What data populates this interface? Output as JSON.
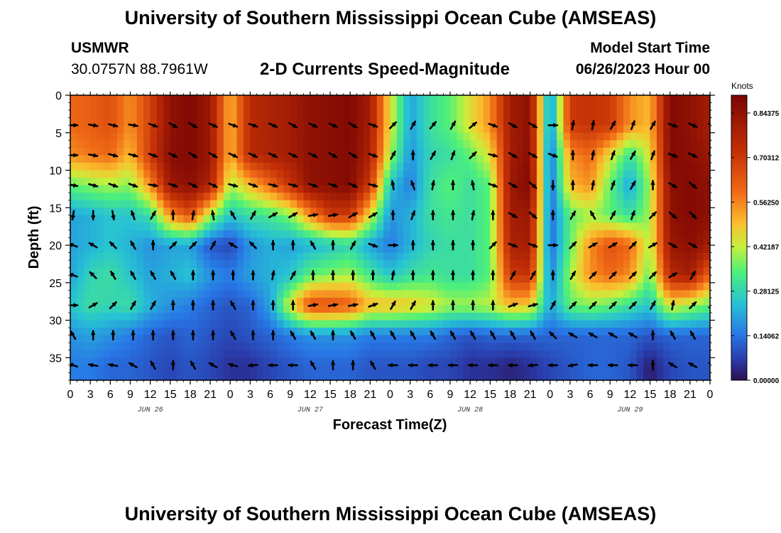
{
  "header": {
    "title": "University of Southern Mississippi Ocean Cube (AMSEAS)",
    "station_id": "USMWR",
    "station_coords": "30.0757N  88.7961W",
    "plot_title": "2-D Currents Speed-Magnitude",
    "model_start_label": "Model Start Time",
    "model_start_value": "06/26/2023 Hour 00"
  },
  "footer": {
    "title": "University of Southern Mississippi Ocean Cube (AMSEAS)"
  },
  "colors": {
    "arrow": "#000000",
    "frame": "#000000"
  },
  "chart_data": {
    "type": "heatmap",
    "title": "2-D Currents Speed-Magnitude",
    "xlabel": "Forecast Time(Z)",
    "ylabel": "Depth (ft)",
    "x_range_hours": [
      0,
      96
    ],
    "y_range_ft": [
      0,
      38
    ],
    "y_ticks": [
      0,
      5,
      10,
      15,
      20,
      25,
      30,
      35
    ],
    "x_tick_labels": [
      "0",
      "3",
      "6",
      "9",
      "12",
      "15",
      "18",
      "21",
      "0",
      "3",
      "6",
      "9",
      "12",
      "15",
      "18",
      "21",
      "0",
      "3",
      "6",
      "9",
      "12",
      "15",
      "18",
      "21",
      "0",
      "3",
      "6",
      "9",
      "12",
      "15",
      "18",
      "21",
      "0"
    ],
    "date_labels": [
      {
        "label": "JUN 26",
        "hour": 12
      },
      {
        "label": "JUN 27",
        "hour": 36
      },
      {
        "label": "JUN 28",
        "hour": 60
      },
      {
        "label": "JUN 29",
        "hour": 84
      }
    ],
    "colorbar": {
      "title": "Knots",
      "min": 0.0,
      "max": 0.9,
      "ticks": [
        0.84375,
        0.703125,
        0.5625,
        0.421875,
        0.28125,
        0.140625,
        0.0
      ],
      "tick_labels": [
        "0.84375",
        "0.70312",
        "0.56250",
        "0.42187",
        "0.28125",
        "0.14062",
        "0.00000"
      ]
    },
    "arrow_hours": [
      0,
      3,
      6,
      9,
      12,
      15,
      18,
      21,
      24,
      27,
      30,
      33,
      36,
      39,
      42,
      45,
      48,
      51,
      54,
      57,
      60,
      63,
      66,
      69,
      72,
      75,
      78,
      81,
      84,
      87,
      90,
      93,
      96
    ],
    "depths_ft": [
      4,
      8,
      12,
      16,
      20,
      24,
      28,
      32,
      36
    ],
    "speed_knots": [
      [
        0.6,
        0.62,
        0.65,
        0.55,
        0.68,
        0.85,
        0.88,
        0.82,
        0.5,
        0.75,
        0.78,
        0.8,
        0.85,
        0.86,
        0.88,
        0.8,
        0.45,
        0.2,
        0.3,
        0.35,
        0.45,
        0.55,
        0.8,
        0.85,
        0.15,
        0.7,
        0.72,
        0.7,
        0.55,
        0.5,
        0.88,
        0.85,
        0.8
      ],
      [
        0.55,
        0.58,
        0.6,
        0.5,
        0.7,
        0.86,
        0.88,
        0.82,
        0.5,
        0.75,
        0.78,
        0.8,
        0.85,
        0.86,
        0.88,
        0.78,
        0.4,
        0.18,
        0.28,
        0.3,
        0.35,
        0.45,
        0.8,
        0.86,
        0.12,
        0.55,
        0.6,
        0.45,
        0.3,
        0.45,
        0.88,
        0.86,
        0.82
      ],
      [
        0.35,
        0.38,
        0.4,
        0.38,
        0.55,
        0.82,
        0.86,
        0.78,
        0.4,
        0.5,
        0.6,
        0.72,
        0.85,
        0.86,
        0.88,
        0.7,
        0.25,
        0.15,
        0.3,
        0.35,
        0.3,
        0.35,
        0.82,
        0.88,
        0.12,
        0.5,
        0.55,
        0.35,
        0.2,
        0.4,
        0.85,
        0.88,
        0.85
      ],
      [
        0.2,
        0.22,
        0.25,
        0.25,
        0.3,
        0.55,
        0.65,
        0.4,
        0.25,
        0.3,
        0.32,
        0.38,
        0.55,
        0.7,
        0.7,
        0.45,
        0.18,
        0.22,
        0.3,
        0.32,
        0.3,
        0.35,
        0.8,
        0.82,
        0.12,
        0.35,
        0.4,
        0.35,
        0.3,
        0.4,
        0.85,
        0.88,
        0.85
      ],
      [
        0.2,
        0.22,
        0.25,
        0.22,
        0.18,
        0.2,
        0.2,
        0.1,
        0.08,
        0.18,
        0.22,
        0.2,
        0.22,
        0.25,
        0.28,
        0.2,
        0.15,
        0.22,
        0.28,
        0.3,
        0.3,
        0.35,
        0.78,
        0.8,
        0.12,
        0.35,
        0.55,
        0.65,
        0.6,
        0.4,
        0.82,
        0.86,
        0.8
      ],
      [
        0.2,
        0.28,
        0.3,
        0.25,
        0.2,
        0.22,
        0.25,
        0.18,
        0.15,
        0.2,
        0.22,
        0.25,
        0.35,
        0.38,
        0.4,
        0.32,
        0.25,
        0.3,
        0.32,
        0.3,
        0.3,
        0.35,
        0.7,
        0.72,
        0.15,
        0.4,
        0.55,
        0.6,
        0.55,
        0.35,
        0.75,
        0.8,
        0.6
      ],
      [
        0.25,
        0.3,
        0.28,
        0.3,
        0.22,
        0.18,
        0.15,
        0.12,
        0.1,
        0.12,
        0.2,
        0.45,
        0.65,
        0.65,
        0.62,
        0.5,
        0.5,
        0.48,
        0.45,
        0.4,
        0.4,
        0.42,
        0.5,
        0.48,
        0.2,
        0.35,
        0.38,
        0.35,
        0.3,
        0.25,
        0.45,
        0.4,
        0.35
      ],
      [
        0.18,
        0.2,
        0.18,
        0.15,
        0.12,
        0.1,
        0.12,
        0.1,
        0.08,
        0.1,
        0.12,
        0.15,
        0.18,
        0.18,
        0.18,
        0.15,
        0.15,
        0.15,
        0.15,
        0.12,
        0.1,
        0.12,
        0.12,
        0.12,
        0.12,
        0.12,
        0.12,
        0.12,
        0.12,
        0.1,
        0.12,
        0.12,
        0.12
      ],
      [
        0.15,
        0.15,
        0.12,
        0.12,
        0.1,
        0.08,
        0.1,
        0.08,
        0.05,
        0.05,
        0.08,
        0.1,
        0.12,
        0.12,
        0.12,
        0.1,
        0.1,
        0.1,
        0.08,
        0.08,
        0.05,
        0.05,
        0.03,
        0.05,
        0.08,
        0.1,
        0.12,
        0.12,
        0.1,
        0.02,
        0.08,
        0.1,
        0.1
      ]
    ],
    "direction_deg_cw_from_east": [
      [
        0,
        10,
        15,
        10,
        20,
        30,
        30,
        25,
        20,
        20,
        25,
        30,
        25,
        25,
        30,
        20,
        -45,
        -60,
        -50,
        -60,
        -40,
        20,
        30,
        30,
        0,
        -80,
        -80,
        -60,
        -70,
        -60,
        20,
        25,
        20
      ],
      [
        0,
        10,
        15,
        15,
        20,
        25,
        30,
        30,
        25,
        25,
        25,
        25,
        25,
        30,
        30,
        20,
        -60,
        -90,
        -60,
        -70,
        -45,
        15,
        30,
        30,
        20,
        -90,
        -80,
        -70,
        -60,
        -70,
        20,
        25,
        25
      ],
      [
        10,
        15,
        20,
        20,
        10,
        20,
        25,
        25,
        15,
        20,
        15,
        15,
        20,
        20,
        25,
        15,
        -100,
        -110,
        -80,
        -90,
        -100,
        20,
        30,
        40,
        90,
        -90,
        -80,
        -70,
        -60,
        -90,
        30,
        40,
        40
      ],
      [
        100,
        90,
        80,
        -110,
        -60,
        -90,
        -80,
        -100,
        -120,
        -60,
        -30,
        -30,
        -10,
        -10,
        -30,
        -30,
        -90,
        -70,
        -90,
        -90,
        -80,
        -90,
        30,
        40,
        -90,
        -60,
        -120,
        -60,
        -70,
        -45,
        40,
        45,
        45
      ],
      [
        -160,
        -150,
        -135,
        -120,
        -90,
        -45,
        -45,
        -60,
        -150,
        -135,
        -90,
        -90,
        -120,
        -90,
        -60,
        20,
        0,
        -90,
        -90,
        -90,
        -90,
        -45,
        20,
        20,
        0,
        -45,
        -30,
        -30,
        -45,
        -30,
        30,
        30,
        30
      ],
      [
        -160,
        -135,
        -120,
        -120,
        -120,
        -120,
        -90,
        -90,
        -90,
        -90,
        -80,
        -60,
        -90,
        -90,
        -90,
        -90,
        -80,
        -90,
        -90,
        -90,
        -90,
        -90,
        -60,
        -60,
        -90,
        -60,
        -45,
        -45,
        -45,
        -45,
        -30,
        -60,
        -60
      ],
      [
        0,
        -30,
        -45,
        -60,
        -60,
        -90,
        -90,
        -90,
        -120,
        -90,
        -90,
        -90,
        -10,
        -10,
        -10,
        -20,
        -60,
        -60,
        -90,
        -90,
        -90,
        -90,
        -20,
        -15,
        -60,
        -45,
        -45,
        -45,
        -45,
        -60,
        -80,
        -45,
        -30
      ],
      [
        -120,
        -90,
        -90,
        -90,
        -90,
        -90,
        -90,
        -90,
        -120,
        -90,
        -90,
        -120,
        -120,
        -90,
        -120,
        -120,
        -120,
        -120,
        -120,
        -120,
        -120,
        -120,
        -120,
        -120,
        -135,
        -150,
        -150,
        -150,
        -150,
        -90,
        -120,
        -120,
        60
      ],
      [
        -160,
        -170,
        -170,
        -150,
        -120,
        -90,
        -120,
        -150,
        -165,
        175,
        -180,
        -180,
        -120,
        -90,
        -90,
        -120,
        -180,
        -180,
        -180,
        -180,
        180,
        180,
        180,
        175,
        180,
        170,
        180,
        180,
        180,
        -90,
        -150,
        -150,
        -150
      ]
    ]
  }
}
